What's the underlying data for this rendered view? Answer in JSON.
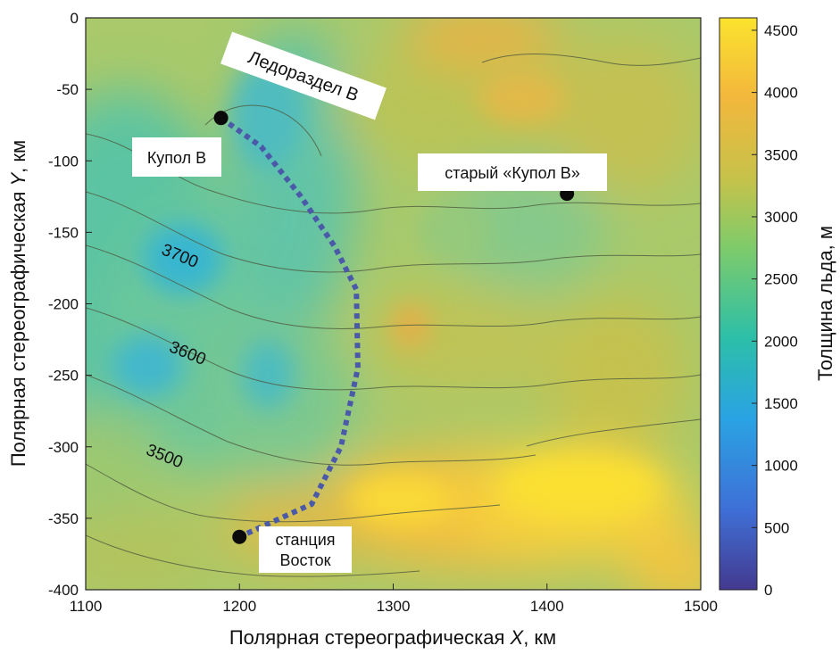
{
  "map": {
    "xlabel_prefix": "Полярная стереографическая ",
    "xlabel_var": "X",
    "xlabel_suffix": ", км",
    "ylabel_prefix": "Полярная стереографическая ",
    "ylabel_var": "Y",
    "ylabel_suffix": ", км",
    "xlim": [
      1100,
      1500
    ],
    "ylim": [
      -400,
      0
    ],
    "x_ticks": [
      1100,
      1200,
      1300,
      1400,
      1500
    ],
    "y_ticks": [
      0,
      -50,
      -100,
      -150,
      -200,
      -250,
      -300,
      -350,
      -400
    ],
    "colorbar": {
      "label": "Толщина льда, м",
      "range": [
        0,
        4600
      ],
      "ticks": [
        0,
        500,
        1000,
        1500,
        2000,
        2500,
        3000,
        3500,
        4000,
        4500
      ],
      "colors": [
        "#433a8f",
        "#3f6fd6",
        "#2aa3e3",
        "#2cbfa8",
        "#7fcb6a",
        "#c7c24a",
        "#f2b73c",
        "#fbe32e"
      ]
    },
    "contours": [
      {
        "label": "3700",
        "x": 1160,
        "y": -170,
        "rotation": 22
      },
      {
        "label": "3600",
        "x": 1165,
        "y": -238,
        "rotation": 22
      },
      {
        "label": "3500",
        "x": 1150,
        "y": -310,
        "rotation": 22
      }
    ],
    "points": [
      {
        "name": "Купол B",
        "x": 1188,
        "y": -70
      },
      {
        "name": "старый «Купол B»",
        "x": 1413,
        "y": -123
      },
      {
        "name": "станция Восток",
        "x": 1200,
        "y": -363
      }
    ],
    "labels": {
      "dome": "Купол B",
      "old_dome": "старый «Купол B»",
      "station_line1": "станция",
      "station_line2": "Восток",
      "ridge": "Ледораздел B"
    },
    "route": [
      [
        1188,
        -70
      ],
      [
        1214,
        -90
      ],
      [
        1240,
        -125
      ],
      [
        1262,
        -160
      ],
      [
        1276,
        -190
      ],
      [
        1277,
        -245
      ],
      [
        1266,
        -300
      ],
      [
        1247,
        -340
      ],
      [
        1200,
        -363
      ]
    ],
    "route_color": "#4a5aa8"
  }
}
